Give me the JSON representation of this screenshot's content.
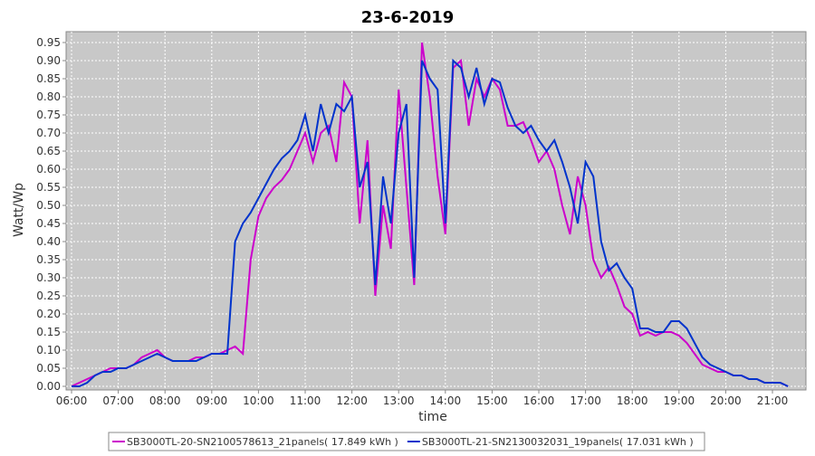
{
  "chart_data": {
    "type": "line",
    "title": "23-6-2019",
    "x_label": "time",
    "y_label": "Watt/Wp",
    "x": [
      "06:00",
      "06:10",
      "06:20",
      "06:30",
      "06:40",
      "06:50",
      "07:00",
      "07:10",
      "07:20",
      "07:30",
      "07:40",
      "07:50",
      "08:00",
      "08:10",
      "08:20",
      "08:30",
      "08:40",
      "08:50",
      "09:00",
      "09:10",
      "09:20",
      "09:30",
      "09:40",
      "09:50",
      "10:00",
      "10:10",
      "10:20",
      "10:30",
      "10:40",
      "10:50",
      "11:00",
      "11:10",
      "11:20",
      "11:30",
      "11:40",
      "11:50",
      "12:00",
      "12:10",
      "12:20",
      "12:30",
      "12:40",
      "12:50",
      "13:00",
      "13:10",
      "13:20",
      "13:30",
      "13:40",
      "13:50",
      "14:00",
      "14:10",
      "14:20",
      "14:30",
      "14:40",
      "14:50",
      "15:00",
      "15:10",
      "15:20",
      "15:30",
      "15:40",
      "15:50",
      "16:00",
      "16:10",
      "16:20",
      "16:30",
      "16:40",
      "16:50",
      "17:00",
      "17:10",
      "17:20",
      "17:30",
      "17:40",
      "17:50",
      "18:00",
      "18:10",
      "18:20",
      "18:30",
      "18:40",
      "18:50",
      "19:00",
      "19:10",
      "19:20",
      "19:30",
      "19:40",
      "19:50",
      "20:00",
      "20:10",
      "20:20",
      "20:30",
      "20:40",
      "20:50",
      "21:00",
      "21:10",
      "21:20"
    ],
    "series": [
      {
        "name": "SB3000TL-20-SN2100578613_21panels( 17.849 kWh )",
        "color": "#cc00cc",
        "values": [
          0,
          0.01,
          0.02,
          0.03,
          0.04,
          0.05,
          0.05,
          0.05,
          0.06,
          0.08,
          0.09,
          0.1,
          0.08,
          0.07,
          0.07,
          0.07,
          0.08,
          0.08,
          0.09,
          0.09,
          0.1,
          0.11,
          0.09,
          0.35,
          0.47,
          0.52,
          0.55,
          0.57,
          0.6,
          0.65,
          0.7,
          0.62,
          0.7,
          0.72,
          0.62,
          0.84,
          0.8,
          0.45,
          0.68,
          0.25,
          0.5,
          0.38,
          0.82,
          0.55,
          0.28,
          0.95,
          0.8,
          0.58,
          0.42,
          0.88,
          0.9,
          0.72,
          0.85,
          0.8,
          0.85,
          0.82,
          0.72,
          0.72,
          0.73,
          0.68,
          0.62,
          0.65,
          0.6,
          0.5,
          0.42,
          0.58,
          0.5,
          0.35,
          0.3,
          0.33,
          0.28,
          0.22,
          0.2,
          0.14,
          0.15,
          0.14,
          0.15,
          0.15,
          0.14,
          0.12,
          0.09,
          0.06,
          0.05,
          0.04,
          0.04,
          0.03,
          0.03,
          0.02,
          0.02,
          0.01,
          0.01,
          0.01,
          0
        ]
      },
      {
        "name": "SB3000TL-21-SN2130032031_19panels( 17.031 kWh )",
        "color": "#0033cc",
        "values": [
          0,
          0,
          0.01,
          0.03,
          0.04,
          0.04,
          0.05,
          0.05,
          0.06,
          0.07,
          0.08,
          0.09,
          0.08,
          0.07,
          0.07,
          0.07,
          0.07,
          0.08,
          0.09,
          0.09,
          0.09,
          0.4,
          0.45,
          0.48,
          0.52,
          0.56,
          0.6,
          0.63,
          0.65,
          0.68,
          0.75,
          0.65,
          0.78,
          0.7,
          0.78,
          0.76,
          0.8,
          0.55,
          0.62,
          0.28,
          0.58,
          0.45,
          0.7,
          0.78,
          0.3,
          0.9,
          0.85,
          0.82,
          0.45,
          0.9,
          0.88,
          0.8,
          0.88,
          0.78,
          0.85,
          0.84,
          0.77,
          0.72,
          0.7,
          0.72,
          0.68,
          0.65,
          0.68,
          0.62,
          0.55,
          0.45,
          0.62,
          0.58,
          0.4,
          0.32,
          0.34,
          0.3,
          0.27,
          0.16,
          0.16,
          0.15,
          0.15,
          0.18,
          0.18,
          0.16,
          0.12,
          0.08,
          0.06,
          0.05,
          0.04,
          0.03,
          0.03,
          0.02,
          0.02,
          0.01,
          0.01,
          0.01,
          0
        ]
      }
    ],
    "xlim": [
      "05:53",
      "21:43"
    ],
    "xticks": [
      "06:00",
      "07:00",
      "08:00",
      "09:00",
      "10:00",
      "11:00",
      "12:00",
      "13:00",
      "14:00",
      "15:00",
      "16:00",
      "17:00",
      "18:00",
      "19:00",
      "20:00",
      "21:00"
    ],
    "ylim": [
      -0.01,
      0.98
    ],
    "yticks": [
      {
        "value": 0,
        "label": "0.00"
      },
      {
        "value": 0.05,
        "label": "0.05"
      },
      {
        "value": 0.1,
        "label": "0.10"
      },
      {
        "value": 0.15,
        "label": "0.15"
      },
      {
        "value": 0.2,
        "label": "0.20"
      },
      {
        "value": 0.25,
        "label": "0.25"
      },
      {
        "value": 0.3,
        "label": "0.30"
      },
      {
        "value": 0.35,
        "label": "0.35"
      },
      {
        "value": 0.4,
        "label": "0.40"
      },
      {
        "value": 0.45,
        "label": "0.45"
      },
      {
        "value": 0.5,
        "label": "0.50"
      },
      {
        "value": 0.55,
        "label": "0.55"
      },
      {
        "value": 0.6,
        "label": "0.60"
      },
      {
        "value": 0.65,
        "label": "0.65"
      },
      {
        "value": 0.7,
        "label": "0.70"
      },
      {
        "value": 0.75,
        "label": "0.75"
      },
      {
        "value": 0.8,
        "label": "0.80"
      },
      {
        "value": 0.85,
        "label": "0.85"
      },
      {
        "value": 0.9,
        "label": "0.90"
      },
      {
        "value": 0.95,
        "label": "0.95"
      }
    ],
    "grid": true
  }
}
